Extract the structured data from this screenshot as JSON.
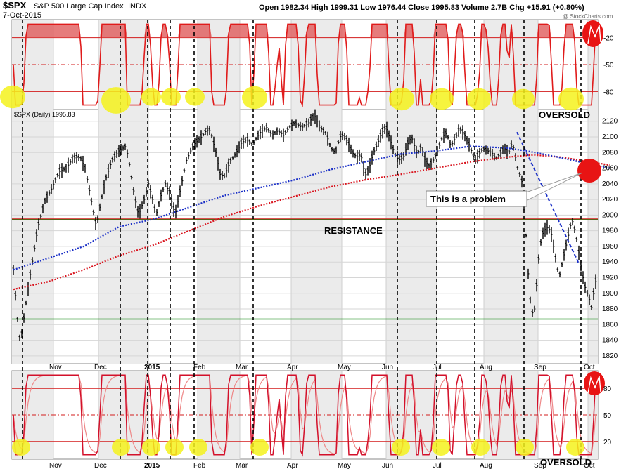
{
  "header": {
    "symbol": "$SPX",
    "name": "S&P 500 Large Cap Index",
    "exchange": "INDX",
    "date": "7-Oct-2015",
    "ohlc": "Open 1982.34  High 1999.31  Low 1976.44  Close 1995.83  Volume 2.7B  Chg +15.91 (+0.80%)",
    "watermark": "@ StockCharts.com",
    "legend": "$SPX (Daily) 1995.83"
  },
  "chart_data": [
    {
      "type": "line",
      "panel": "top-oscillator",
      "y_ticks": [
        "-20",
        "-50",
        "-80"
      ],
      "levels": [
        -20,
        -50,
        -80
      ],
      "ylim": [
        -100,
        0
      ],
      "annotations": [
        "OVERSOLD"
      ]
    },
    {
      "type": "ohlc",
      "panel": "price",
      "series": [
        {
          "name": "$SPX (Daily) 1995.83",
          "last": 1995.83
        }
      ],
      "y_ticks": [
        "2120",
        "2100",
        "2080",
        "2060",
        "2040",
        "2020",
        "2000",
        "1980",
        "1960",
        "1940",
        "1920",
        "1900",
        "1880",
        "1860",
        "1840",
        "1820"
      ],
      "ylim": [
        1810,
        2135
      ],
      "x_ticks": [
        "Nov",
        "Dec",
        "2015",
        "Feb",
        "Mar",
        "Apr",
        "May",
        "Jun",
        "Jul",
        "Aug",
        "Sep",
        "Oct"
      ],
      "resistance": 1995,
      "support": 1867,
      "annotations": [
        "RESISTANCE",
        "This is a problem"
      ],
      "price_path": [
        [
          0,
          1930
        ],
        [
          5,
          1875
        ],
        [
          10,
          1835
        ],
        [
          16,
          1875
        ],
        [
          25,
          1930
        ],
        [
          35,
          1985
        ],
        [
          45,
          2018
        ],
        [
          55,
          2035
        ],
        [
          65,
          2055
        ],
        [
          75,
          2060
        ],
        [
          85,
          2073
        ],
        [
          95,
          2074
        ],
        [
          102,
          2060
        ],
        [
          110,
          2022
        ],
        [
          118,
          1985
        ],
        [
          124,
          2015
        ],
        [
          132,
          2048
        ],
        [
          140,
          2070
        ],
        [
          150,
          2082
        ],
        [
          160,
          2088
        ],
        [
          166,
          2060
        ],
        [
          172,
          2025
        ],
        [
          178,
          2000
        ],
        [
          186,
          2020
        ],
        [
          192,
          2040
        ],
        [
          198,
          2020
        ],
        [
          203,
          2000
        ],
        [
          210,
          2025
        ],
        [
          216,
          2040
        ],
        [
          222,
          2028
        ],
        [
          230,
          2000
        ],
        [
          238,
          2035
        ],
        [
          246,
          2070
        ],
        [
          256,
          2090
        ],
        [
          266,
          2098
        ],
        [
          274,
          2108
        ],
        [
          280,
          2108
        ],
        [
          288,
          2080
        ],
        [
          294,
          2052
        ],
        [
          300,
          2050
        ],
        [
          308,
          2068
        ],
        [
          316,
          2078
        ],
        [
          324,
          2092
        ],
        [
          332,
          2097
        ],
        [
          340,
          2090
        ],
        [
          350,
          2105
        ],
        [
          360,
          2112
        ],
        [
          368,
          2102
        ],
        [
          376,
          2108
        ],
        [
          384,
          2102
        ],
        [
          392,
          2112
        ],
        [
          400,
          2118
        ],
        [
          410,
          2112
        ],
        [
          420,
          2118
        ],
        [
          428,
          2128
        ],
        [
          436,
          2112
        ],
        [
          444,
          2105
        ],
        [
          452,
          2085
        ],
        [
          458,
          2080
        ],
        [
          464,
          2100
        ],
        [
          470,
          2102
        ],
        [
          476,
          2092
        ],
        [
          482,
          2080
        ],
        [
          488,
          2074
        ],
        [
          494,
          2078
        ],
        [
          500,
          2050
        ],
        [
          506,
          2060
        ],
        [
          512,
          2080
        ],
        [
          518,
          2092
        ],
        [
          524,
          2106
        ],
        [
          530,
          2112
        ],
        [
          536,
          2096
        ],
        [
          542,
          2078
        ],
        [
          548,
          2070
        ],
        [
          555,
          2075
        ],
        [
          560,
          2090
        ],
        [
          566,
          2100
        ],
        [
          574,
          2078
        ],
        [
          580,
          2088
        ],
        [
          586,
          2068
        ],
        [
          592,
          2062
        ],
        [
          598,
          2072
        ],
        [
          604,
          2084
        ],
        [
          610,
          2100
        ],
        [
          616,
          2105
        ],
        [
          622,
          2088
        ],
        [
          628,
          2098
        ],
        [
          634,
          2110
        ],
        [
          640,
          2105
        ],
        [
          648,
          2090
        ],
        [
          656,
          2070
        ],
        [
          662,
          2078
        ],
        [
          668,
          2085
        ],
        [
          674,
          2082
        ],
        [
          680,
          2080
        ],
        [
          686,
          2072
        ],
        [
          692,
          2078
        ],
        [
          698,
          2086
        ],
        [
          704,
          2078
        ],
        [
          708,
          2090
        ],
        [
          712,
          2085
        ],
        [
          716,
          2063
        ],
        [
          720,
          2052
        ],
        [
          724,
          2040
        ],
        [
          728,
          1990
        ],
        [
          732,
          1925
        ],
        [
          736,
          1880
        ],
        [
          740,
          1870
        ],
        [
          744,
          1910
        ],
        [
          748,
          1955
        ],
        [
          752,
          1975
        ],
        [
          758,
          1985
        ],
        [
          764,
          1980
        ],
        [
          770,
          1950
        ],
        [
          776,
          1920
        ],
        [
          782,
          1945
        ],
        [
          788,
          1970
        ],
        [
          794,
          1995
        ],
        [
          800,
          1975
        ],
        [
          806,
          1940
        ],
        [
          812,
          1910
        ],
        [
          818,
          1895
        ],
        [
          822,
          1882
        ],
        [
          826,
          1905
        ],
        [
          830,
          1925
        ],
        [
          834,
          1960
        ],
        [
          838,
          1985
        ],
        [
          842,
          1996
        ]
      ],
      "ma50_path": [
        [
          0,
          1930
        ],
        [
          50,
          1945
        ],
        [
          100,
          1960
        ],
        [
          150,
          1985
        ],
        [
          200,
          1995
        ],
        [
          250,
          2010
        ],
        [
          300,
          2025
        ],
        [
          350,
          2035
        ],
        [
          400,
          2045
        ],
        [
          450,
          2058
        ],
        [
          500,
          2068
        ],
        [
          550,
          2078
        ],
        [
          600,
          2082
        ],
        [
          650,
          2088
        ],
        [
          700,
          2086
        ],
        [
          730,
          2082
        ],
        [
          770,
          2075
        ],
        [
          820,
          2065
        ],
        [
          848,
          2060
        ]
      ],
      "ma200_path": [
        [
          0,
          1905
        ],
        [
          50,
          1915
        ],
        [
          100,
          1930
        ],
        [
          150,
          1948
        ],
        [
          200,
          1962
        ],
        [
          250,
          1980
        ],
        [
          300,
          1998
        ],
        [
          350,
          2012
        ],
        [
          400,
          2024
        ],
        [
          450,
          2036
        ],
        [
          500,
          2045
        ],
        [
          550,
          2052
        ],
        [
          600,
          2060
        ],
        [
          650,
          2068
        ],
        [
          700,
          2074
        ],
        [
          740,
          2077
        ],
        [
          780,
          2074
        ],
        [
          820,
          2068
        ],
        [
          848,
          2064
        ]
      ]
    },
    {
      "type": "line",
      "panel": "bottom-oscillator",
      "y_ticks": [
        "80",
        "50",
        "20"
      ],
      "levels": [
        80,
        50,
        20
      ],
      "ylim": [
        0,
        100
      ],
      "annotations": [
        "OVERSOLD"
      ]
    }
  ]
}
